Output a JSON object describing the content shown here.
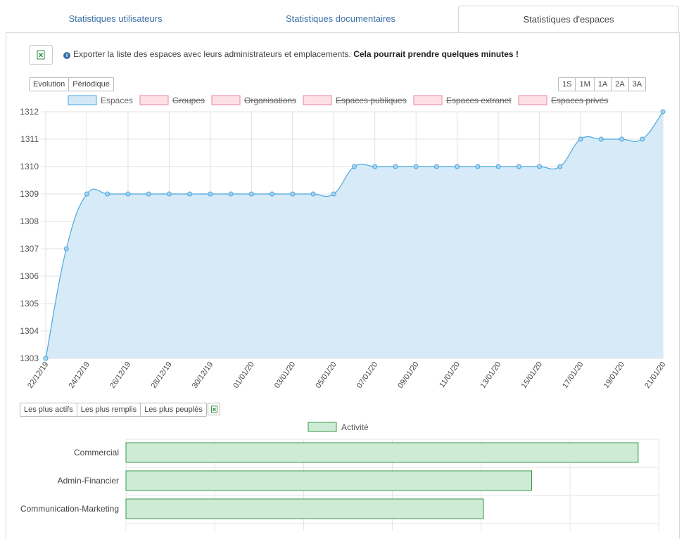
{
  "tabs": [
    {
      "label": "Statistiques utilisateurs",
      "active": false
    },
    {
      "label": "Statistiques documentaires",
      "active": false
    },
    {
      "label": "Statistiques d'espaces",
      "active": true
    }
  ],
  "export": {
    "icon": "excel-icon",
    "info_icon": "info-icon",
    "text": "Exporter la liste des espaces avec leurs administrateurs et emplacements.",
    "bold_text": "Cela pourrait prendre quelques minutes !"
  },
  "mode_buttons": [
    "Evolution",
    "Périodique"
  ],
  "range_buttons": [
    "1S",
    "1M",
    "1A",
    "2A",
    "3A"
  ],
  "line_chart_legend": [
    {
      "label": "Espaces",
      "active": true
    },
    {
      "label": "Groupes",
      "active": false
    },
    {
      "label": "Organisations",
      "active": false
    },
    {
      "label": "Espaces publiques",
      "active": false
    },
    {
      "label": "Espaces extranet",
      "active": false
    },
    {
      "label": "Espaces privés",
      "active": false
    }
  ],
  "ranking_buttons": [
    "Les plus actifs",
    "Les plus remplis",
    "Les plus peuplés"
  ],
  "colors": {
    "line": "#4aa8dc",
    "area": "#d4e9f8",
    "disabled_border": "#e48a9c",
    "disabled_fill": "#fde1e6",
    "bar_border": "#3a9a4a",
    "bar_fill": "#cdebd5",
    "tab_text": "#3a70a8"
  },
  "chart_data": [
    {
      "type": "area",
      "series": [
        {
          "name": "Espaces",
          "values": [
            1303,
            1307,
            1309,
            1309,
            1309,
            1309,
            1309,
            1309,
            1309,
            1309,
            1309,
            1309,
            1309,
            1309,
            1309,
            1310,
            1310,
            1310,
            1310,
            1310,
            1310,
            1310,
            1310,
            1310,
            1310,
            1310,
            1311,
            1311,
            1311,
            1311,
            1312
          ]
        }
      ],
      "x_labels": [
        "22/12/19",
        "24/12/19",
        "26/12/19",
        "28/12/19",
        "30/12/19",
        "01/01/20",
        "03/01/20",
        "05/01/20",
        "07/01/20",
        "09/01/20",
        "11/01/20",
        "13/01/20",
        "15/01/20",
        "17/01/20",
        "19/01/20",
        "21/01/20"
      ],
      "y_ticks": [
        1303,
        1304,
        1305,
        1306,
        1307,
        1308,
        1309,
        1310,
        1311,
        1312
      ],
      "ylim": [
        1303,
        1312
      ],
      "grid": true,
      "legend": "top"
    },
    {
      "type": "bar",
      "orientation": "horizontal",
      "legend": "top",
      "series": [
        {
          "name": "Activité",
          "values": [
            100,
            79.2,
            69.8
          ]
        }
      ],
      "categories": [
        "Commercial",
        "Admin-Financier",
        "Communication-Marketing"
      ],
      "xlim": [
        0,
        104
      ],
      "grid": true
    }
  ]
}
